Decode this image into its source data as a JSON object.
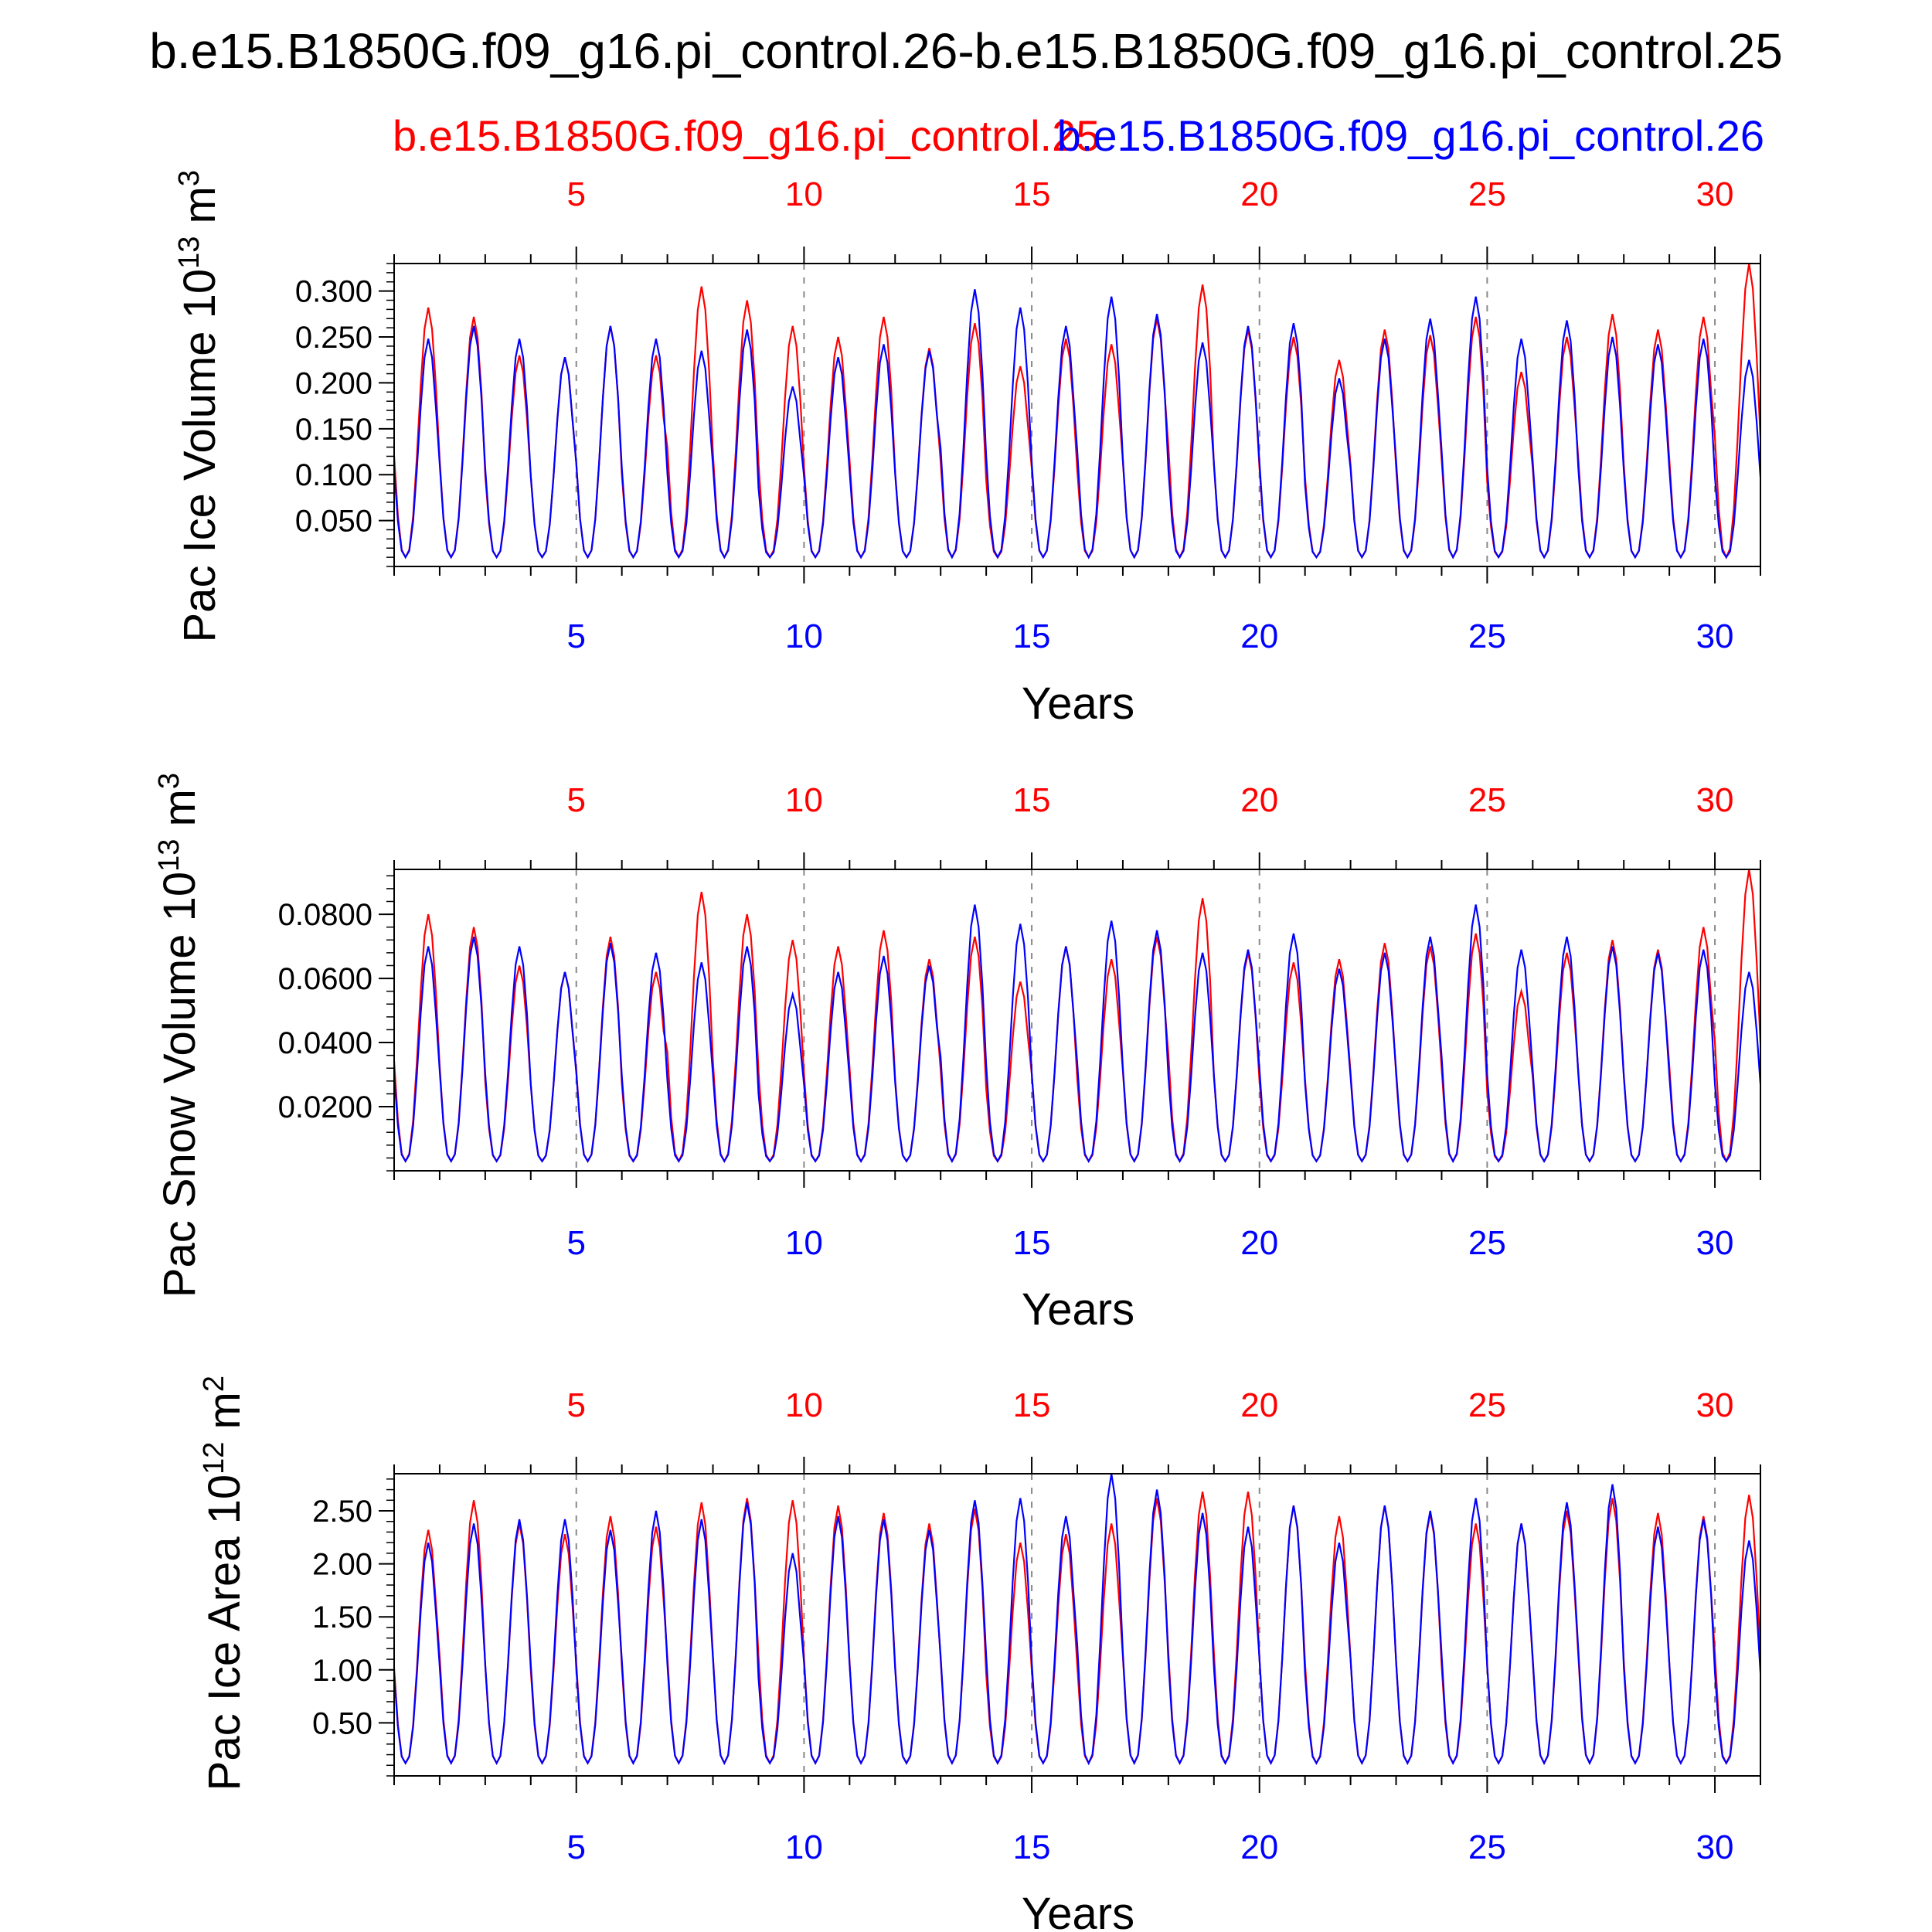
{
  "title": "b.e15.B1850G.f09_g16.pi_control.26-b.e15.B1850G.f09_g16.pi_control.25",
  "legend": {
    "red_name": "b.e15.B1850G.f09_g16.pi_control.25",
    "blue_name": "b.e15.B1850G.f09_g16.pi_control.26"
  },
  "colors": {
    "red": "#ff0000",
    "blue": "#0000ff",
    "axis": "#000000",
    "grid": "#888888"
  },
  "chart_data": [
    {
      "type": "line",
      "ylabel_main": "Pac Ice Volume 10",
      "ylabel_exp": "13",
      "ylabel_unit": " m",
      "ylabel_unit_exp": "3",
      "xlabel": "Years",
      "xlim": [
        1,
        31
      ],
      "ylim": [
        0.0,
        0.33
      ],
      "x_ticks": [
        5,
        10,
        15,
        20,
        25,
        30
      ],
      "y_ticks": [
        0.05,
        0.1,
        0.15,
        0.2,
        0.25,
        0.3
      ],
      "y_tick_labels": [
        "0.050",
        "0.100",
        "0.150",
        "0.200",
        "0.250",
        "0.300"
      ],
      "trough": 0.01,
      "series": [
        {
          "color": "red",
          "peaks": [
            0.282,
            0.272,
            0.23,
            0.228,
            0.262,
            0.23,
            0.305,
            0.29,
            0.262,
            0.25,
            0.272,
            0.238,
            0.265,
            0.218,
            0.248,
            0.242,
            0.27,
            0.307,
            0.258,
            0.25,
            0.225,
            0.258,
            0.252,
            0.272,
            0.212,
            0.25,
            0.275,
            0.258,
            0.272,
            0.33
          ]
        },
        {
          "color": "blue",
          "peaks": [
            0.248,
            0.262,
            0.248,
            0.228,
            0.262,
            0.248,
            0.235,
            0.258,
            0.196,
            0.228,
            0.242,
            0.235,
            0.302,
            0.282,
            0.262,
            0.294,
            0.275,
            0.244,
            0.262,
            0.265,
            0.205,
            0.248,
            0.27,
            0.294,
            0.248,
            0.268,
            0.25,
            0.242,
            0.248,
            0.225
          ]
        }
      ]
    },
    {
      "type": "line",
      "ylabel_main": "Pac Snow Volume 10",
      "ylabel_exp": "13",
      "ylabel_unit": " m",
      "ylabel_unit_exp": "3",
      "xlabel": "Years",
      "xlim": [
        1,
        31
      ],
      "ylim": [
        0.0,
        0.094
      ],
      "x_ticks": [
        5,
        10,
        15,
        20,
        25,
        30
      ],
      "y_ticks": [
        0.02,
        0.04,
        0.06,
        0.08
      ],
      "y_tick_labels": [
        "0.0200",
        "0.0400",
        "0.0600",
        "0.0800"
      ],
      "trough": 0.003,
      "series": [
        {
          "color": "red",
          "peaks": [
            0.08,
            0.076,
            0.064,
            0.062,
            0.073,
            0.062,
            0.087,
            0.08,
            0.072,
            0.07,
            0.075,
            0.066,
            0.073,
            0.059,
            0.07,
            0.066,
            0.073,
            0.085,
            0.068,
            0.065,
            0.066,
            0.071,
            0.07,
            0.074,
            0.056,
            0.068,
            0.072,
            0.069,
            0.076,
            0.094
          ]
        },
        {
          "color": "blue",
          "peaks": [
            0.07,
            0.073,
            0.07,
            0.062,
            0.071,
            0.068,
            0.065,
            0.07,
            0.055,
            0.062,
            0.067,
            0.064,
            0.083,
            0.077,
            0.07,
            0.078,
            0.075,
            0.068,
            0.069,
            0.074,
            0.063,
            0.068,
            0.073,
            0.083,
            0.069,
            0.073,
            0.07,
            0.068,
            0.069,
            0.062
          ]
        }
      ]
    },
    {
      "type": "line",
      "ylabel_main": "Pac Ice Area 10",
      "ylabel_exp": "12",
      "ylabel_unit": " m",
      "ylabel_unit_exp": "2",
      "xlabel": "Years",
      "xlim": [
        1,
        31
      ],
      "ylim": [
        0.0,
        2.85
      ],
      "x_ticks": [
        5,
        10,
        15,
        20,
        25,
        30
      ],
      "y_ticks": [
        0.5,
        1.0,
        1.5,
        2.0,
        2.5
      ],
      "y_tick_labels": [
        "0.50",
        "1.00",
        "1.50",
        "2.00",
        "2.50"
      ],
      "trough": 0.12,
      "series": [
        {
          "color": "red",
          "peaks": [
            2.32,
            2.6,
            2.38,
            2.28,
            2.45,
            2.35,
            2.58,
            2.62,
            2.6,
            2.55,
            2.48,
            2.38,
            2.52,
            2.2,
            2.28,
            2.38,
            2.62,
            2.68,
            2.68,
            2.55,
            2.45,
            2.55,
            2.48,
            2.38,
            2.38,
            2.5,
            2.62,
            2.48,
            2.45,
            2.65
          ]
        },
        {
          "color": "blue",
          "peaks": [
            2.2,
            2.38,
            2.42,
            2.42,
            2.32,
            2.5,
            2.42,
            2.58,
            2.1,
            2.45,
            2.42,
            2.32,
            2.6,
            2.62,
            2.45,
            2.85,
            2.7,
            2.48,
            2.35,
            2.55,
            2.2,
            2.55,
            2.5,
            2.62,
            2.38,
            2.58,
            2.75,
            2.35,
            2.42,
            2.22
          ]
        }
      ]
    }
  ]
}
